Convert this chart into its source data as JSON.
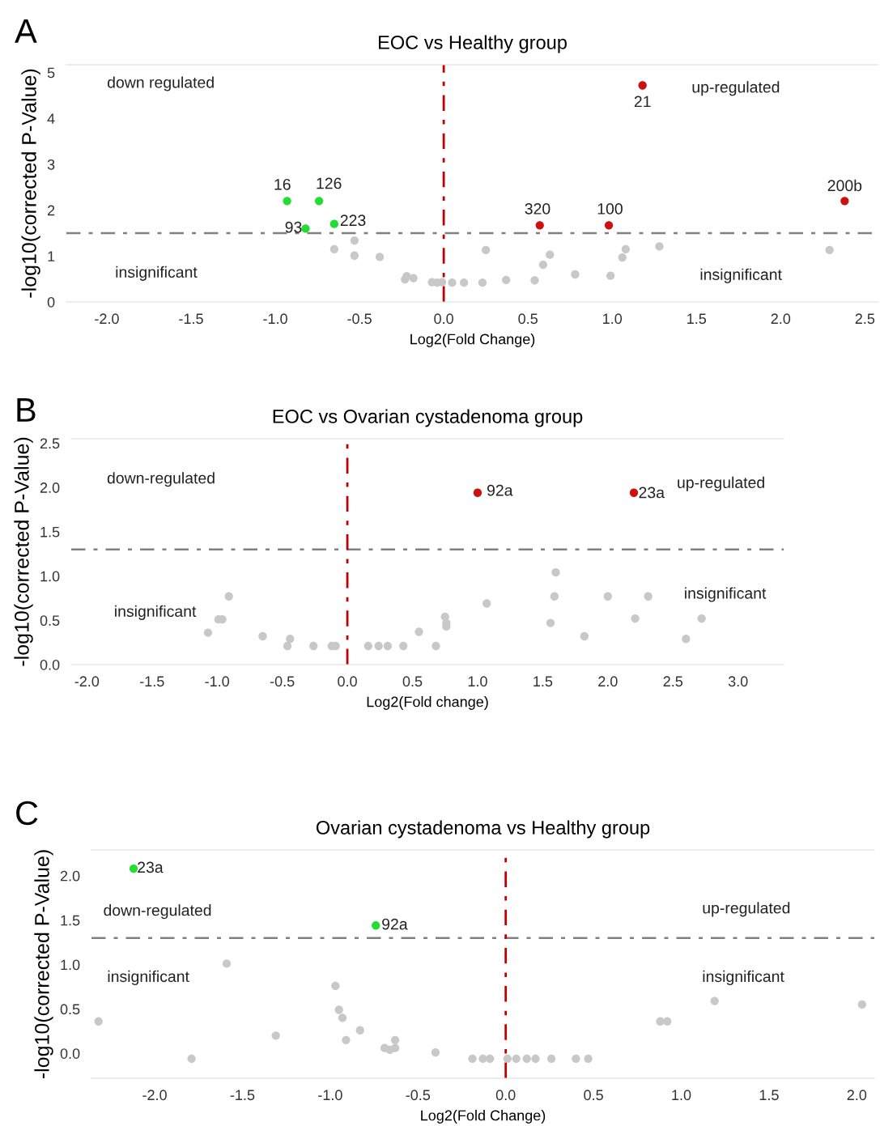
{
  "chart_data": [
    {
      "type": "scatter",
      "title": "EOC vs Healthy group",
      "xlabel": "Log2(Fold Change)",
      "ylabel": "-log10(corrected P-Value)",
      "xlim": [
        -2.24,
        2.58
      ],
      "ylim": [
        0,
        5.17
      ],
      "xticks": [
        {
          "value": -2,
          "label": "-2.0"
        },
        {
          "value": -1.5,
          "label": "-1.5"
        },
        {
          "value": -1,
          "label": "-1.0"
        },
        {
          "value": -0.5,
          "label": "-0.5"
        },
        {
          "value": 0,
          "label": "0.0"
        },
        {
          "value": 0.5,
          "label": "0.5"
        },
        {
          "value": 1,
          "label": "1.0"
        },
        {
          "value": 1.5,
          "label": "1.5"
        },
        {
          "value": 2,
          "label": "2.0"
        },
        {
          "value": 2.5,
          "label": "2.5"
        }
      ],
      "yticks": [
        0,
        1,
        2,
        3,
        4,
        5
      ],
      "grid": false,
      "marker": "circle",
      "ref_lines": [
        {
          "axis": "y",
          "value": 1.5,
          "color": "#808080",
          "line_style": "dashdot"
        },
        {
          "axis": "x",
          "value": 0,
          "color": "#c00000",
          "line_style": "dashdot"
        }
      ],
      "series": [
        {
          "color": "#22dd33",
          "x": [
            -0.93,
            -0.74,
            -0.82,
            -0.65
          ],
          "values": [
            2.2,
            2.2,
            1.6,
            1.7
          ]
        },
        {
          "color": "#cc1111",
          "x": [
            1.18,
            0.57,
            0.98,
            2.38
          ],
          "values": [
            4.72,
            1.67,
            1.67,
            2.2
          ]
        },
        {
          "color": "#c8c8c8",
          "x": [
            -0.65,
            -0.53,
            -0.53,
            -0.38,
            -0.23,
            -0.22,
            -0.18,
            -0.07,
            -0.01,
            -0.04,
            0.05,
            0.12,
            0.23,
            0.25,
            0.37,
            0.54,
            0.59,
            0.63,
            0.78,
            0.99,
            1.06,
            1.08,
            1.28,
            2.29
          ],
          "values": [
            1.15,
            1.34,
            1.01,
            0.98,
            0.49,
            0.56,
            0.52,
            0.43,
            0.43,
            0.42,
            0.42,
            0.42,
            0.42,
            1.13,
            0.48,
            0.47,
            0.81,
            1.03,
            0.6,
            0.57,
            0.97,
            1.15,
            1.21,
            1.13
          ]
        }
      ],
      "annotations": [
        "A",
        "down regulated",
        "up-regulated",
        "insignificant",
        "insignificant",
        {
          "text": "16",
          "x": -0.93,
          "y": 2.2
        },
        {
          "text": "126",
          "x": -0.74,
          "y": 2.2
        },
        {
          "text": "93",
          "x": -0.82,
          "y": 1.6
        },
        {
          "text": "223",
          "x": -0.65,
          "y": 1.7
        },
        {
          "text": "21",
          "x": 1.18,
          "y": 4.72
        },
        {
          "text": "320",
          "x": 0.57,
          "y": 1.67
        },
        {
          "text": "100",
          "x": 0.98,
          "y": 1.67
        },
        {
          "text": "200b",
          "x": 2.38,
          "y": 2.2
        }
      ]
    },
    {
      "type": "scatter",
      "title": "EOC vs Ovarian cystadenoma group",
      "xlabel": "Log2(Fold change)",
      "ylabel": "-log10(corrected P-Value)",
      "xlim": [
        -2.12,
        3.35
      ],
      "ylim": [
        0,
        2.55
      ],
      "xticks": [
        {
          "value": -2,
          "label": "-2.0"
        },
        {
          "value": -1.5,
          "label": "-1.5"
        },
        {
          "value": -1,
          "label": "-1.0"
        },
        {
          "value": -0.5,
          "label": "-0.5"
        },
        {
          "value": 0,
          "label": "0.0"
        },
        {
          "value": 0.5,
          "label": "0.5"
        },
        {
          "value": 1,
          "label": "1.0"
        },
        {
          "value": 1.5,
          "label": "1.5"
        },
        {
          "value": 2,
          "label": "2.0"
        },
        {
          "value": 2.5,
          "label": "2.5"
        },
        {
          "value": 3,
          "label": "3.0"
        }
      ],
      "yticks": [
        {
          "value": 0,
          "label": "0.0"
        },
        {
          "value": 0.5,
          "label": "0.5"
        },
        {
          "value": 1,
          "label": "1.0"
        },
        {
          "value": 1.5,
          "label": "1.5"
        },
        {
          "value": 2,
          "label": "2.0"
        },
        {
          "value": 2.5,
          "label": "2.5"
        }
      ],
      "grid": false,
      "marker": "circle",
      "ref_lines": [
        {
          "axis": "y",
          "value": 1.3,
          "color": "#808080",
          "line_style": "dashdot"
        },
        {
          "axis": "x",
          "value": 0,
          "color": "#c00000",
          "line_style": "dashdot"
        }
      ],
      "series": [
        {
          "color": "#cc1111",
          "x": [
            1.0,
            2.2
          ],
          "values": [
            1.94,
            1.94
          ]
        },
        {
          "color": "#c8c8c8",
          "x": [
            -1.07,
            -0.99,
            -0.96,
            -0.91,
            -0.65,
            -0.46,
            -0.44,
            -0.26,
            -0.12,
            -0.09,
            0.16,
            0.24,
            0.31,
            0.43,
            0.55,
            0.68,
            0.75,
            0.76,
            0.76,
            1.07,
            1.56,
            1.6,
            1.59,
            1.82,
            2.0,
            2.21,
            2.31,
            2.6,
            2.72
          ],
          "values": [
            0.36,
            0.51,
            0.51,
            0.77,
            0.32,
            0.21,
            0.29,
            0.21,
            0.21,
            0.21,
            0.21,
            0.21,
            0.21,
            0.21,
            0.37,
            0.21,
            0.54,
            0.47,
            0.43,
            0.69,
            0.47,
            1.04,
            0.77,
            0.32,
            0.77,
            0.52,
            0.77,
            0.29,
            0.52
          ]
        }
      ],
      "annotations": [
        "B",
        "down-regulated",
        "up-regulated",
        "insignificant",
        "insignificant",
        {
          "text": "92a",
          "x": 1.0,
          "y": 1.94
        },
        {
          "text": "23a",
          "x": 2.2,
          "y": 1.94
        }
      ]
    },
    {
      "type": "scatter",
      "title": "Ovarian cystadenoma vs Healthy group",
      "xlabel": "Log2(Fold Change)",
      "ylabel": "-log10(corrected P-Value)",
      "xlim": [
        -2.36,
        2.1
      ],
      "ylim": [
        -0.28,
        2.29
      ],
      "xticks": [
        {
          "value": -2,
          "label": "-2.0"
        },
        {
          "value": -1.5,
          "label": "-1.5"
        },
        {
          "value": -1,
          "label": "-1.0"
        },
        {
          "value": -0.5,
          "label": "-0.5"
        },
        {
          "value": 0,
          "label": "0.0"
        },
        {
          "value": 0.5,
          "label": "0.5"
        },
        {
          "value": 1,
          "label": "1.0"
        },
        {
          "value": 1.5,
          "label": "1.5"
        },
        {
          "value": 2,
          "label": "2.0"
        }
      ],
      "yticks": [
        {
          "value": 0,
          "label": "0.0"
        },
        {
          "value": 0.5,
          "label": "0.5"
        },
        {
          "value": 1,
          "label": "1.0"
        },
        {
          "value": 1.5,
          "label": "1.5"
        },
        {
          "value": 2,
          "label": "2.0"
        }
      ],
      "grid": false,
      "marker": "circle",
      "ref_lines": [
        {
          "axis": "y",
          "value": 1.3,
          "color": "#808080",
          "line_style": "dashdot"
        },
        {
          "axis": "x",
          "value": 0,
          "color": "#c00000",
          "line_style": "dashdot"
        }
      ],
      "series": [
        {
          "color": "#22dd33",
          "x": [
            -2.12,
            -0.74
          ],
          "values": [
            2.08,
            1.44
          ]
        },
        {
          "color": "#c8c8c8",
          "x": [
            -2.32,
            -1.79,
            -1.59,
            -1.31,
            -0.97,
            -0.95,
            -0.93,
            -0.91,
            -0.83,
            -0.69,
            -0.66,
            -0.63,
            -0.63,
            -0.4,
            -0.19,
            -0.13,
            -0.09,
            0.01,
            0.06,
            0.12,
            0.17,
            0.26,
            0.4,
            0.47,
            0.88,
            0.92,
            1.19,
            2.03
          ],
          "values": [
            0.36,
            -0.06,
            1.01,
            0.2,
            0.76,
            0.49,
            0.4,
            0.15,
            0.26,
            0.06,
            0.04,
            0.06,
            0.15,
            0.01,
            -0.06,
            -0.06,
            -0.06,
            -0.06,
            -0.06,
            -0.06,
            -0.06,
            -0.06,
            -0.06,
            -0.06,
            0.36,
            0.36,
            0.59,
            0.55
          ]
        }
      ],
      "annotations": [
        "C",
        "down-regulated",
        "up-regulated",
        "insignificant",
        "insignificant",
        {
          "text": "23a",
          "x": -2.12,
          "y": 2.08
        },
        {
          "text": "92a",
          "x": -0.74,
          "y": 1.44
        }
      ]
    }
  ]
}
